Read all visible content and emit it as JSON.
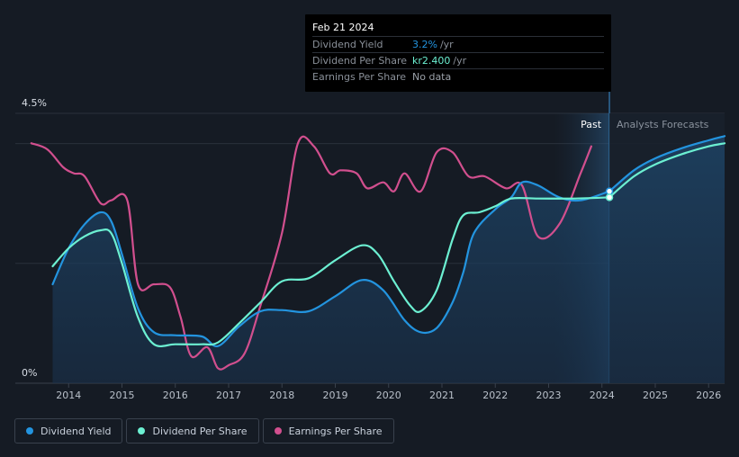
{
  "tooltip": {
    "date": "Feb 21 2024",
    "rows": [
      {
        "label": "Dividend Yield",
        "value": "3.2%",
        "unit": "/yr"
      },
      {
        "label": "Dividend Per Share",
        "value": "kr2.400",
        "unit": "/yr"
      },
      {
        "label": "Earnings Per Share",
        "value": "No data",
        "unit": ""
      }
    ]
  },
  "legend": [
    {
      "label": "Dividend Yield",
      "color": "#2394df"
    },
    {
      "label": "Dividend Per Share",
      "color": "#6cf0d2"
    },
    {
      "label": "Earnings Per Share",
      "color": "#d14f8e"
    }
  ],
  "chart_data": {
    "type": "line",
    "title": "",
    "xlabel": "",
    "ylabel": "",
    "ylim": [
      0,
      4.5
    ],
    "y_top_label": "4.5%",
    "y_bottom_label": "0%",
    "xlim": [
      2013.0,
      2026.3
    ],
    "x_ticks": [
      "2014",
      "2015",
      "2016",
      "2017",
      "2018",
      "2019",
      "2020",
      "2021",
      "2022",
      "2023",
      "2024",
      "2025",
      "2026"
    ],
    "past_label": "Past",
    "forecast_label": "Analysts Forecasts",
    "past_region": [
      2023.1,
      2024.14
    ],
    "series": [
      {
        "name": "Dividend Yield",
        "color": "#2394df",
        "x": [
          2013.7,
          2014.0,
          2014.3,
          2014.6,
          2014.8,
          2015.0,
          2015.3,
          2015.6,
          2016.0,
          2016.5,
          2016.8,
          2017.2,
          2017.6,
          2018.0,
          2018.5,
          2019.0,
          2019.5,
          2019.9,
          2020.3,
          2020.6,
          2020.9,
          2021.2,
          2021.4,
          2021.6,
          2022.0,
          2022.3,
          2022.5,
          2022.8,
          2023.2,
          2023.6,
          2024.14
        ],
        "values": [
          1.65,
          2.25,
          2.65,
          2.85,
          2.7,
          2.15,
          1.25,
          0.85,
          0.8,
          0.78,
          0.62,
          0.95,
          1.2,
          1.22,
          1.2,
          1.45,
          1.72,
          1.55,
          1.05,
          0.85,
          0.92,
          1.35,
          1.85,
          2.5,
          2.9,
          3.1,
          3.35,
          3.3,
          3.1,
          3.05,
          3.2
        ]
      },
      {
        "name": "Dividend Per Share",
        "color": "#6cf0d2",
        "x": [
          2013.7,
          2014.0,
          2014.3,
          2014.6,
          2014.8,
          2015.0,
          2015.3,
          2015.6,
          2016.0,
          2016.5,
          2016.8,
          2017.2,
          2017.6,
          2018.0,
          2018.5,
          2019.0,
          2019.5,
          2019.8,
          2020.1,
          2020.4,
          2020.6,
          2020.9,
          2021.2,
          2021.4,
          2021.7,
          2022.0,
          2022.3,
          2022.8,
          2023.5,
          2024.14
        ],
        "values": [
          1.95,
          2.25,
          2.45,
          2.55,
          2.5,
          2.0,
          1.1,
          0.65,
          0.65,
          0.65,
          0.68,
          1.0,
          1.35,
          1.7,
          1.75,
          2.05,
          2.3,
          2.15,
          1.7,
          1.3,
          1.2,
          1.55,
          2.4,
          2.8,
          2.85,
          2.95,
          3.08,
          3.08,
          3.08,
          3.1
        ]
      },
      {
        "name": "Earnings Per Share",
        "color": "#d14f8e",
        "x": [
          2013.3,
          2013.6,
          2013.9,
          2014.1,
          2014.3,
          2014.6,
          2014.8,
          2015.1,
          2015.3,
          2015.6,
          2015.9,
          2016.1,
          2016.3,
          2016.6,
          2016.8,
          2017.0,
          2017.3,
          2017.6,
          2018.0,
          2018.3,
          2018.6,
          2018.9,
          2019.1,
          2019.4,
          2019.6,
          2019.9,
          2020.1,
          2020.3,
          2020.6,
          2020.9,
          2021.2,
          2021.5,
          2021.8,
          2022.2,
          2022.5,
          2022.8,
          2023.2,
          2023.6,
          2023.8
        ],
        "values": [
          4.0,
          3.9,
          3.6,
          3.5,
          3.45,
          3.0,
          3.05,
          3.05,
          1.65,
          1.65,
          1.6,
          1.1,
          0.45,
          0.6,
          0.25,
          0.3,
          0.5,
          1.3,
          2.5,
          4.0,
          3.95,
          3.5,
          3.55,
          3.5,
          3.25,
          3.35,
          3.2,
          3.5,
          3.2,
          3.85,
          3.85,
          3.45,
          3.45,
          3.25,
          3.3,
          2.45,
          2.65,
          3.5,
          3.95
        ]
      },
      {
        "name": "Dividend Yield Forecast",
        "color": "#2394df",
        "x": [
          2024.14,
          2024.6,
          2025.0,
          2025.5,
          2026.0,
          2026.3
        ],
        "values": [
          3.2,
          3.55,
          3.75,
          3.92,
          4.05,
          4.12
        ]
      },
      {
        "name": "Dividend Per Share Forecast",
        "color": "#6cf0d2",
        "x": [
          2024.14,
          2024.6,
          2025.0,
          2025.5,
          2026.0,
          2026.3
        ],
        "values": [
          3.1,
          3.45,
          3.65,
          3.82,
          3.95,
          4.0
        ]
      }
    ]
  }
}
